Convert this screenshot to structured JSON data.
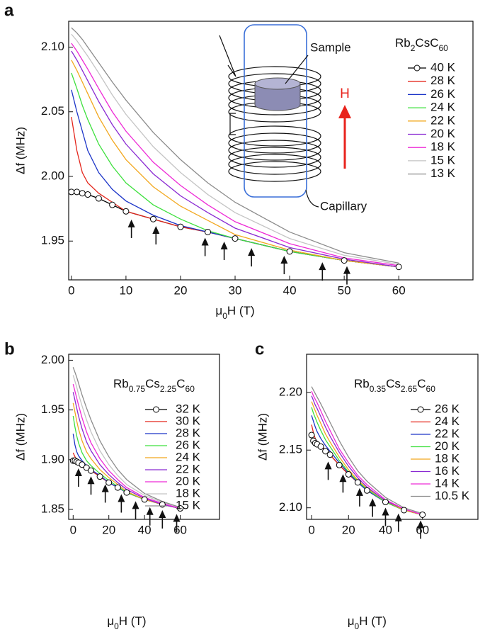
{
  "chart_data": [
    {
      "type": "line",
      "label": "a",
      "title": "Rb2CsC60",
      "xlabel": "μ0H (T)",
      "ylabel": "Δf (MHz)",
      "annotations": [
        "Sample",
        "H",
        "Capillary"
      ],
      "x": [
        0,
        1,
        2,
        3,
        5,
        7.5,
        10,
        15,
        20,
        25,
        30,
        40,
        50,
        60
      ],
      "xlim": [
        -0.5,
        73.6
      ],
      "ylim": [
        1.92,
        2.12
      ],
      "xticks": [
        0,
        10,
        20,
        30,
        40,
        50,
        60
      ],
      "yticks": [
        1.95,
        {
          "value": 2.0,
          "label": "2.00"
        },
        2.05,
        {
          "value": 2.1,
          "label": "2.10"
        }
      ],
      "legend": "upper right",
      "series": [
        {
          "name": "40 K",
          "color": "#000000",
          "marker": "circle",
          "values": [
            1.988,
            1.988,
            1.987,
            1.986,
            1.983,
            1.978,
            1.973,
            1.967,
            1.961,
            1.957,
            1.952,
            1.942,
            1.935,
            1.93
          ]
        },
        {
          "name": "28 K",
          "color": "#e4261c",
          "values": [
            2.046,
            2.02,
            2.003,
            1.995,
            1.987,
            1.98,
            1.973,
            1.967,
            1.961,
            1.957,
            1.952,
            1.942,
            1.935,
            1.93
          ]
        },
        {
          "name": "26 K",
          "color": "#1c35c8",
          "values": [
            2.067,
            2.05,
            2.035,
            2.02,
            2.003,
            1.99,
            1.981,
            1.97,
            1.962,
            1.957,
            1.952,
            1.942,
            1.935,
            1.93
          ]
        },
        {
          "name": "24 K",
          "color": "#3ee03e",
          "values": [
            2.08,
            2.068,
            2.055,
            2.044,
            2.025,
            2.008,
            1.995,
            1.978,
            1.967,
            1.958,
            1.952,
            1.942,
            1.935,
            1.93
          ]
        },
        {
          "name": "22 K",
          "color": "#f2a81f",
          "values": [
            2.09,
            2.082,
            2.073,
            2.064,
            2.046,
            2.028,
            2.013,
            1.992,
            1.977,
            1.966,
            1.955,
            1.943,
            1.935,
            1.93
          ]
        },
        {
          "name": "20 K",
          "color": "#8a2ad2",
          "values": [
            2.097,
            2.09,
            2.082,
            2.074,
            2.058,
            2.04,
            2.025,
            2.002,
            1.985,
            1.972,
            1.96,
            1.945,
            1.936,
            1.93
          ]
        },
        {
          "name": "18 K",
          "color": "#ee2ad6",
          "values": [
            2.103,
            2.097,
            2.09,
            2.083,
            2.068,
            2.05,
            2.035,
            2.011,
            1.993,
            1.978,
            1.965,
            1.948,
            1.937,
            1.931
          ]
        },
        {
          "name": "15 K",
          "color": "#c4c4c4",
          "values": [
            2.11,
            2.105,
            2.099,
            2.093,
            2.08,
            2.063,
            2.048,
            2.023,
            2.003,
            1.986,
            1.972,
            1.952,
            1.939,
            1.932
          ]
        },
        {
          "name": "13 K",
          "color": "#8c8c8c",
          "values": [
            2.115,
            2.111,
            2.106,
            2.1,
            2.088,
            2.073,
            2.059,
            2.034,
            2.013,
            1.995,
            1.98,
            1.957,
            1.941,
            1.933
          ]
        }
      ],
      "arrows": {
        "x": [
          11,
          15.5,
          24.5,
          28,
          33,
          39,
          46,
          50.5
        ],
        "y": [
          1.971,
          1.966,
          1.957,
          1.954,
          1.949,
          1.943,
          1.938,
          1.935
        ]
      }
    },
    {
      "type": "line",
      "label": "b",
      "title": "Rb0.75Cs2.25C60",
      "xlabel": "μ0H (T)",
      "ylabel": "Δf (MHz)",
      "x": [
        0,
        1,
        2,
        3,
        5,
        7.5,
        10,
        15,
        20,
        25,
        30,
        40,
        50,
        60
      ],
      "xlim": [
        -2.5,
        82
      ],
      "ylim": [
        1.84,
        2.006
      ],
      "xticks": [
        0,
        20,
        40,
        60
      ],
      "yticks": [
        1.85,
        {
          "value": 1.9,
          "label": "1.90"
        },
        1.95,
        {
          "value": 2.0,
          "label": "2.00"
        }
      ],
      "legend": "upper right",
      "series": [
        {
          "name": "32 K",
          "color": "#000000",
          "marker": "circle",
          "values": [
            1.899,
            1.899,
            1.898,
            1.897,
            1.895,
            1.892,
            1.889,
            1.883,
            1.877,
            1.872,
            1.867,
            1.86,
            1.855,
            1.851
          ]
        },
        {
          "name": "30 K",
          "color": "#e4261c",
          "values": [
            1.907,
            1.903,
            1.9,
            1.898,
            1.895,
            1.892,
            1.889,
            1.883,
            1.877,
            1.872,
            1.867,
            1.86,
            1.855,
            1.851
          ]
        },
        {
          "name": "28 K",
          "color": "#1c35c8",
          "values": [
            1.926,
            1.915,
            1.908,
            1.904,
            1.899,
            1.894,
            1.89,
            1.884,
            1.877,
            1.872,
            1.867,
            1.86,
            1.855,
            1.851
          ]
        },
        {
          "name": "26 K",
          "color": "#3ee03e",
          "values": [
            1.944,
            1.933,
            1.924,
            1.917,
            1.907,
            1.899,
            1.894,
            1.886,
            1.879,
            1.873,
            1.867,
            1.86,
            1.855,
            1.851
          ]
        },
        {
          "name": "24 K",
          "color": "#f2a81f",
          "values": [
            1.957,
            1.948,
            1.939,
            1.931,
            1.919,
            1.908,
            1.901,
            1.89,
            1.882,
            1.875,
            1.868,
            1.86,
            1.855,
            1.851
          ]
        },
        {
          "name": "22 K",
          "color": "#8a2ad2",
          "values": [
            1.968,
            1.96,
            1.952,
            1.944,
            1.931,
            1.918,
            1.909,
            1.895,
            1.885,
            1.877,
            1.87,
            1.861,
            1.855,
            1.851
          ]
        },
        {
          "name": "20 K",
          "color": "#ee2ad6",
          "values": [
            1.976,
            1.969,
            1.962,
            1.955,
            1.942,
            1.928,
            1.917,
            1.901,
            1.889,
            1.88,
            1.872,
            1.862,
            1.856,
            1.851
          ]
        },
        {
          "name": "18 K",
          "color": "#c4c4c4",
          "values": [
            1.985,
            1.979,
            1.973,
            1.966,
            1.954,
            1.94,
            1.928,
            1.909,
            1.895,
            1.884,
            1.875,
            1.864,
            1.857,
            1.852
          ]
        },
        {
          "name": "15 K",
          "color": "#8c8c8c",
          "values": [
            1.993,
            1.988,
            1.983,
            1.977,
            1.965,
            1.952,
            1.94,
            1.919,
            1.903,
            1.89,
            1.88,
            1.866,
            1.858,
            1.852
          ]
        }
      ],
      "arrows": {
        "x": [
          3,
          10,
          18,
          27,
          35,
          43,
          50,
          58
        ],
        "y": [
          1.897,
          1.889,
          1.881,
          1.871,
          1.864,
          1.858,
          1.855,
          1.851
        ]
      }
    },
    {
      "type": "line",
      "label": "c",
      "title": "Rb0.35Cs2.65C60",
      "xlabel": "μ0H (T)",
      "ylabel": "Δf (MHz)",
      "x": [
        0,
        1,
        2,
        3,
        5,
        7.5,
        10,
        15,
        20,
        25,
        30,
        40,
        50,
        60
      ],
      "xlim": [
        -2.7,
        90
      ],
      "ylim": [
        2.09,
        2.233
      ],
      "xticks": [
        0,
        20,
        40,
        60
      ],
      "yticks": [
        {
          "value": 2.1,
          "label": "2.10"
        },
        2.15,
        {
          "value": 2.2,
          "label": "2.20"
        }
      ],
      "legend": "upper right",
      "series": [
        {
          "name": "26 K",
          "color": "#000000",
          "marker": "circle",
          "values": [
            2.163,
            2.158,
            2.156,
            2.155,
            2.153,
            2.149,
            2.146,
            2.137,
            2.129,
            2.122,
            2.115,
            2.105,
            2.098,
            2.094
          ]
        },
        {
          "name": "24 K",
          "color": "#e4261c",
          "values": [
            2.172,
            2.165,
            2.16,
            2.157,
            2.154,
            2.15,
            2.146,
            2.137,
            2.129,
            2.122,
            2.115,
            2.105,
            2.098,
            2.094
          ]
        },
        {
          "name": "22 K",
          "color": "#1c35c8",
          "values": [
            2.18,
            2.175,
            2.17,
            2.166,
            2.16,
            2.154,
            2.149,
            2.139,
            2.13,
            2.122,
            2.115,
            2.105,
            2.098,
            2.094
          ]
        },
        {
          "name": "20 K",
          "color": "#3ee03e",
          "values": [
            2.187,
            2.182,
            2.178,
            2.174,
            2.167,
            2.159,
            2.153,
            2.141,
            2.131,
            2.123,
            2.116,
            2.105,
            2.098,
            2.094
          ]
        },
        {
          "name": "18 K",
          "color": "#f2a81f",
          "values": [
            2.192,
            2.188,
            2.184,
            2.18,
            2.173,
            2.164,
            2.157,
            2.144,
            2.133,
            2.124,
            2.117,
            2.106,
            2.098,
            2.094
          ]
        },
        {
          "name": "16 K",
          "color": "#8a2ad2",
          "values": [
            2.197,
            2.193,
            2.189,
            2.186,
            2.179,
            2.17,
            2.162,
            2.148,
            2.136,
            2.126,
            2.118,
            2.106,
            2.099,
            2.094
          ]
        },
        {
          "name": "14 K",
          "color": "#ee2ad6",
          "values": [
            2.201,
            2.197,
            2.194,
            2.191,
            2.184,
            2.175,
            2.167,
            2.151,
            2.139,
            2.128,
            2.12,
            2.107,
            2.099,
            2.094
          ]
        },
        {
          "name": "10.5 K",
          "color": "#8c8c8c",
          "values": [
            2.205,
            2.202,
            2.199,
            2.196,
            2.19,
            2.182,
            2.174,
            2.158,
            2.144,
            2.132,
            2.123,
            2.109,
            2.1,
            2.095
          ]
        }
      ],
      "arrows": {
        "x": [
          9,
          17,
          26,
          33,
          40,
          47,
          59
        ],
        "y": [
          2.145,
          2.134,
          2.122,
          2.113,
          2.105,
          2.1,
          2.094
        ]
      }
    }
  ]
}
